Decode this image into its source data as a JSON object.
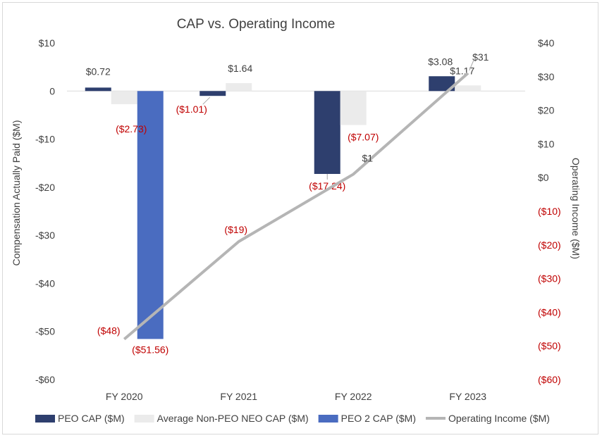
{
  "chart_data": {
    "type": "bar+line",
    "title": "CAP vs. Operating Income",
    "categories": [
      "FY 2020",
      "FY 2021",
      "FY 2022",
      "FY 2023"
    ],
    "y_left": {
      "label": "Compensation Actually Paid ($M)",
      "ylim": [
        -60,
        10
      ],
      "ticks": [
        10,
        0,
        -10,
        -20,
        -30,
        -40,
        -50,
        -60
      ],
      "tick_labels": [
        "$10",
        "0",
        "-$10",
        "-$20",
        "-$30",
        "-$40",
        "-$50",
        "-$60"
      ]
    },
    "y_right": {
      "label": "Operating Income ($M)",
      "ylim": [
        -60,
        40
      ],
      "ticks": [
        40,
        30,
        20,
        10,
        0,
        -10,
        -20,
        -30,
        -40,
        -50,
        -60
      ],
      "tick_labels": [
        "$40",
        "$30",
        "$20",
        "$10",
        "$0",
        "($10)",
        "($20)",
        "($30)",
        "($40)",
        "($50)",
        "($60)"
      ]
    },
    "series": [
      {
        "name": "PEO CAP ($M)",
        "kind": "bar",
        "axis": "left",
        "color": "#2e3f6e",
        "values": [
          0.72,
          -1.01,
          -17.24,
          3.08
        ],
        "labels": [
          "$0.72",
          "($1.01)",
          "($17.24)",
          "$3.08"
        ]
      },
      {
        "name": "Average Non-PEO NEO CAP ($M)",
        "kind": "bar",
        "axis": "left",
        "color": "#ebebeb",
        "values": [
          -2.73,
          1.64,
          -7.07,
          1.17
        ],
        "labels": [
          "($2.73)",
          "$1.64",
          "($7.07)",
          "$1.17"
        ]
      },
      {
        "name": "PEO 2 CAP ($M)",
        "kind": "bar",
        "axis": "left",
        "color": "#4a6cc0",
        "values": [
          -51.56,
          null,
          null,
          null
        ],
        "labels": [
          "($51.56)",
          "",
          "",
          ""
        ]
      },
      {
        "name": "Operating Income ($M)",
        "kind": "line",
        "axis": "right",
        "color": "#b5b5b5",
        "values": [
          -48,
          -19,
          1,
          31
        ],
        "labels": [
          "($48)",
          "($19)",
          "$1",
          "$31"
        ]
      }
    ],
    "colors": {
      "negative_label": "#c00000",
      "text": "#404040",
      "axis_text": "#404040"
    },
    "legend_position": "bottom",
    "grid": false
  }
}
